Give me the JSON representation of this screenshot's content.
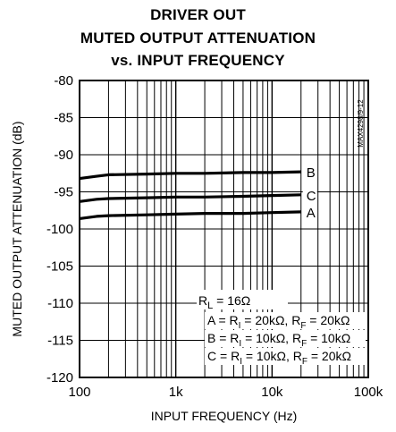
{
  "title_lines": [
    "DRIVER OUT",
    "MUTED OUTPUT ATTENUATION",
    "vs. INPUT FREQUENCY"
  ],
  "part_code": "MAX4298/9-12",
  "chart_data": {
    "type": "line",
    "xlabel": "INPUT FREQUENCY (Hz)",
    "ylabel": "MUTED OUTPUT ATTENUATION (dB)",
    "xscale": "log",
    "xlim": [
      100,
      100000
    ],
    "ylim": [
      -120,
      -80
    ],
    "xticks": [
      100,
      1000,
      10000,
      100000
    ],
    "xtick_labels": [
      "100",
      "1k",
      "10k",
      "100k"
    ],
    "yticks": [
      -80,
      -85,
      -90,
      -95,
      -100,
      -105,
      -110,
      -115,
      -120
    ],
    "ytick_labels": [
      "-80",
      "-85",
      "-90",
      "-95",
      "-100",
      "-105",
      "-110",
      "-115",
      "-120"
    ],
    "grid": true,
    "series": [
      {
        "name": "B",
        "x": [
          100,
          150,
          200,
          500,
          1000,
          2000,
          5000,
          10000,
          20000
        ],
        "y": [
          -93.2,
          -92.9,
          -92.7,
          -92.6,
          -92.5,
          -92.5,
          -92.4,
          -92.4,
          -92.3
        ]
      },
      {
        "name": "C",
        "x": [
          100,
          150,
          200,
          500,
          1000,
          2000,
          5000,
          10000,
          20000
        ],
        "y": [
          -96.3,
          -96.0,
          -95.9,
          -95.8,
          -95.7,
          -95.7,
          -95.6,
          -95.5,
          -95.4
        ]
      },
      {
        "name": "A",
        "x": [
          100,
          150,
          200,
          500,
          1000,
          2000,
          5000,
          10000,
          20000
        ],
        "y": [
          -98.6,
          -98.3,
          -98.2,
          -98.1,
          -98.0,
          -97.9,
          -97.9,
          -97.8,
          -97.7
        ]
      }
    ],
    "annotations": {
      "rl": {
        "main": "R",
        "sub": "L",
        "rest": " = 16Ω"
      },
      "lines": [
        {
          "lead": "A = R",
          "sub1": "I",
          "mid": " = 20kΩ, R",
          "sub2": "F",
          "tail": " = 20kΩ"
        },
        {
          "lead": "B = R",
          "sub1": "I",
          "mid": " = 10kΩ, R",
          "sub2": "F",
          "tail": " = 10kΩ"
        },
        {
          "lead": "C = R",
          "sub1": "I",
          "mid": " = 10kΩ, R",
          "sub2": "F",
          "tail": " = 20kΩ"
        }
      ]
    }
  }
}
